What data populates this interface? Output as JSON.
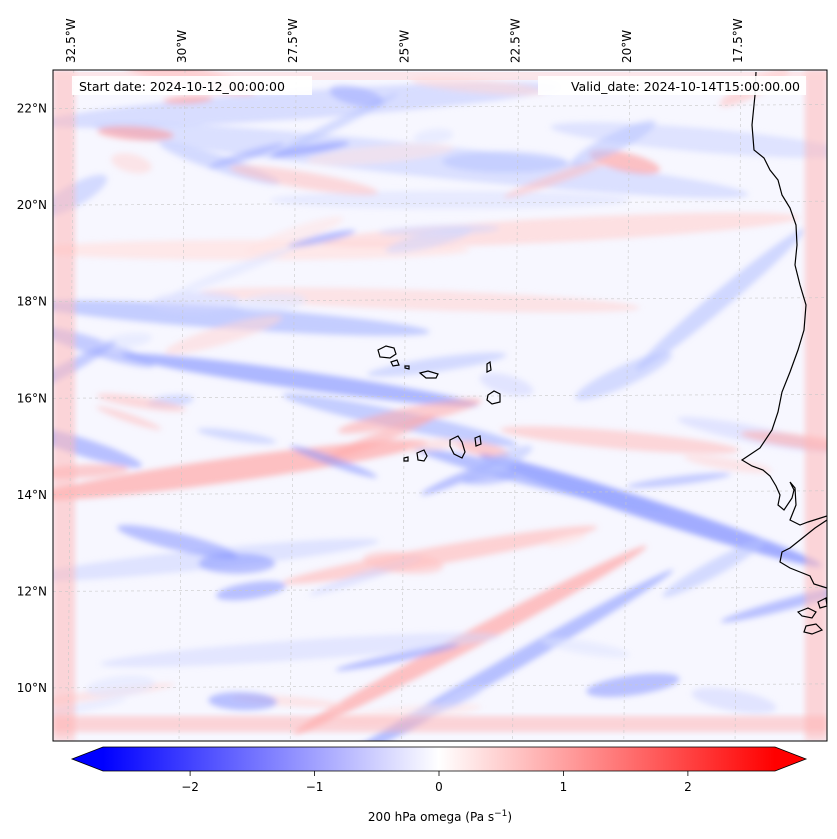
{
  "header": {
    "start_date": "Start date: 2024-10-12_00:00:00",
    "valid_date": "Valid_date: 2024-10-14T15:00:00.00"
  },
  "map": {
    "lon_range": [
      -32.9,
      -15.5
    ],
    "lat_range": [
      8.9,
      22.8
    ],
    "lon_ticks": [
      {
        "value": -32.5,
        "label": "32.5°W"
      },
      {
        "value": -30.0,
        "label": "30°W"
      },
      {
        "value": -27.5,
        "label": "27.5°W"
      },
      {
        "value": -25.0,
        "label": "25°W"
      },
      {
        "value": -22.5,
        "label": "22.5°W"
      },
      {
        "value": -20.0,
        "label": "20°W"
      },
      {
        "value": -17.5,
        "label": "17.5°W"
      }
    ],
    "lat_ticks": [
      {
        "value": 22,
        "label": "22°N"
      },
      {
        "value": 20,
        "label": "20°N"
      },
      {
        "value": 18,
        "label": "18°N"
      },
      {
        "value": 16,
        "label": "16°N"
      },
      {
        "value": 14,
        "label": "14°N"
      },
      {
        "value": 12,
        "label": "12°N"
      },
      {
        "value": 10,
        "label": "10°N"
      }
    ],
    "gridlines": true,
    "colormap": "bwr",
    "coastline_color": "#000000"
  },
  "colorbar": {
    "label_prefix": "200 hPa omega (Pa s",
    "label_exp": "−1",
    "label_suffix": ")",
    "vmin": -2.7,
    "vmax": 2.7,
    "low_color": "#0000ff",
    "mid_color": "#ffffff",
    "high_color": "#ff0000",
    "ticks": [
      {
        "value": -2,
        "label": "−2"
      },
      {
        "value": -1,
        "label": "−1"
      },
      {
        "value": 0,
        "label": "0"
      },
      {
        "value": 1,
        "label": "1"
      },
      {
        "value": 2,
        "label": "2"
      }
    ]
  }
}
